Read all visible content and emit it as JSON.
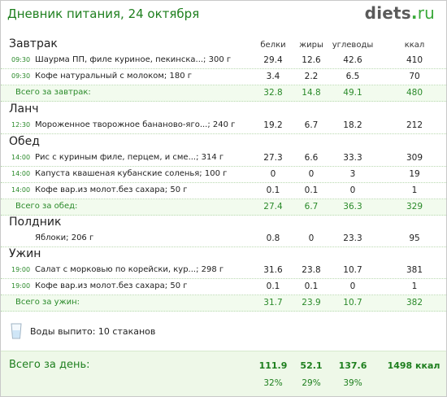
{
  "title": "Дневник питания, 24 октября",
  "logo": {
    "main": "diets",
    "dot": ".",
    "tld": "ru"
  },
  "columns": [
    "белки",
    "жиры",
    "углеводы",
    "ккал"
  ],
  "meals": [
    {
      "name": "Завтрак",
      "items": [
        {
          "time": "09:30",
          "food": "Шаурма ПП, филе куриное, пекинска...; 300 г",
          "protein": "29.4",
          "fat": "12.6",
          "carbs": "42.6",
          "kcal": "410"
        },
        {
          "time": "09:30",
          "food": "Кофе натуральный с молоком; 180 г",
          "protein": "3.4",
          "fat": "2.2",
          "carbs": "6.5",
          "kcal": "70"
        }
      ],
      "total": {
        "label": "Всего за завтрак:",
        "protein": "32.8",
        "fat": "14.8",
        "carbs": "49.1",
        "kcal": "480"
      }
    },
    {
      "name": "Ланч",
      "items": [
        {
          "time": "12:30",
          "food": "Мороженное творожное бананово-яго...; 240 г",
          "protein": "19.2",
          "fat": "6.7",
          "carbs": "18.2",
          "kcal": "212"
        }
      ]
    },
    {
      "name": "Обед",
      "items": [
        {
          "time": "14:00",
          "food": "Рис с куриным филе, перцем, и сме...; 314 г",
          "protein": "27.3",
          "fat": "6.6",
          "carbs": "33.3",
          "kcal": "309"
        },
        {
          "time": "14:00",
          "food": "Капуста квашеная кубанские соленья; 100 г",
          "protein": "0",
          "fat": "0",
          "carbs": "3",
          "kcal": "19"
        },
        {
          "time": "14:00",
          "food": "Кофе вар.из молот.без сахара; 50 г",
          "protein": "0.1",
          "fat": "0.1",
          "carbs": "0",
          "kcal": "1"
        }
      ],
      "total": {
        "label": "Всего за обед:",
        "protein": "27.4",
        "fat": "6.7",
        "carbs": "36.3",
        "kcal": "329"
      }
    },
    {
      "name": "Полдник",
      "items": [
        {
          "time": "",
          "food": "Яблоки; 206 г",
          "protein": "0.8",
          "fat": "0",
          "carbs": "23.3",
          "kcal": "95"
        }
      ]
    },
    {
      "name": "Ужин",
      "items": [
        {
          "time": "19:00",
          "food": "Салат с морковью по корейски, кур...; 298 г",
          "protein": "31.6",
          "fat": "23.8",
          "carbs": "10.7",
          "kcal": "381"
        },
        {
          "time": "19:00",
          "food": "Кофе вар.из молот.без сахара; 50 г",
          "protein": "0.1",
          "fat": "0.1",
          "carbs": "0",
          "kcal": "1"
        }
      ],
      "total": {
        "label": "Всего за ужин:",
        "protein": "31.7",
        "fat": "23.9",
        "carbs": "10.7",
        "kcal": "382"
      }
    }
  ],
  "water": {
    "icon": "water-glass-icon",
    "text": "Воды выпито: 10 стаканов"
  },
  "day_total": {
    "label": "Всего за день:",
    "protein": "111.9",
    "fat": "52.1",
    "carbs": "137.6",
    "kcal": "1498 ккал",
    "protein_pct": "32%",
    "fat_pct": "29%",
    "carbs_pct": "39%"
  },
  "colors": {
    "accent": "#1e7f1e",
    "row_total_bg": "#f2fbee",
    "day_total_bg": "#eef8e8"
  }
}
